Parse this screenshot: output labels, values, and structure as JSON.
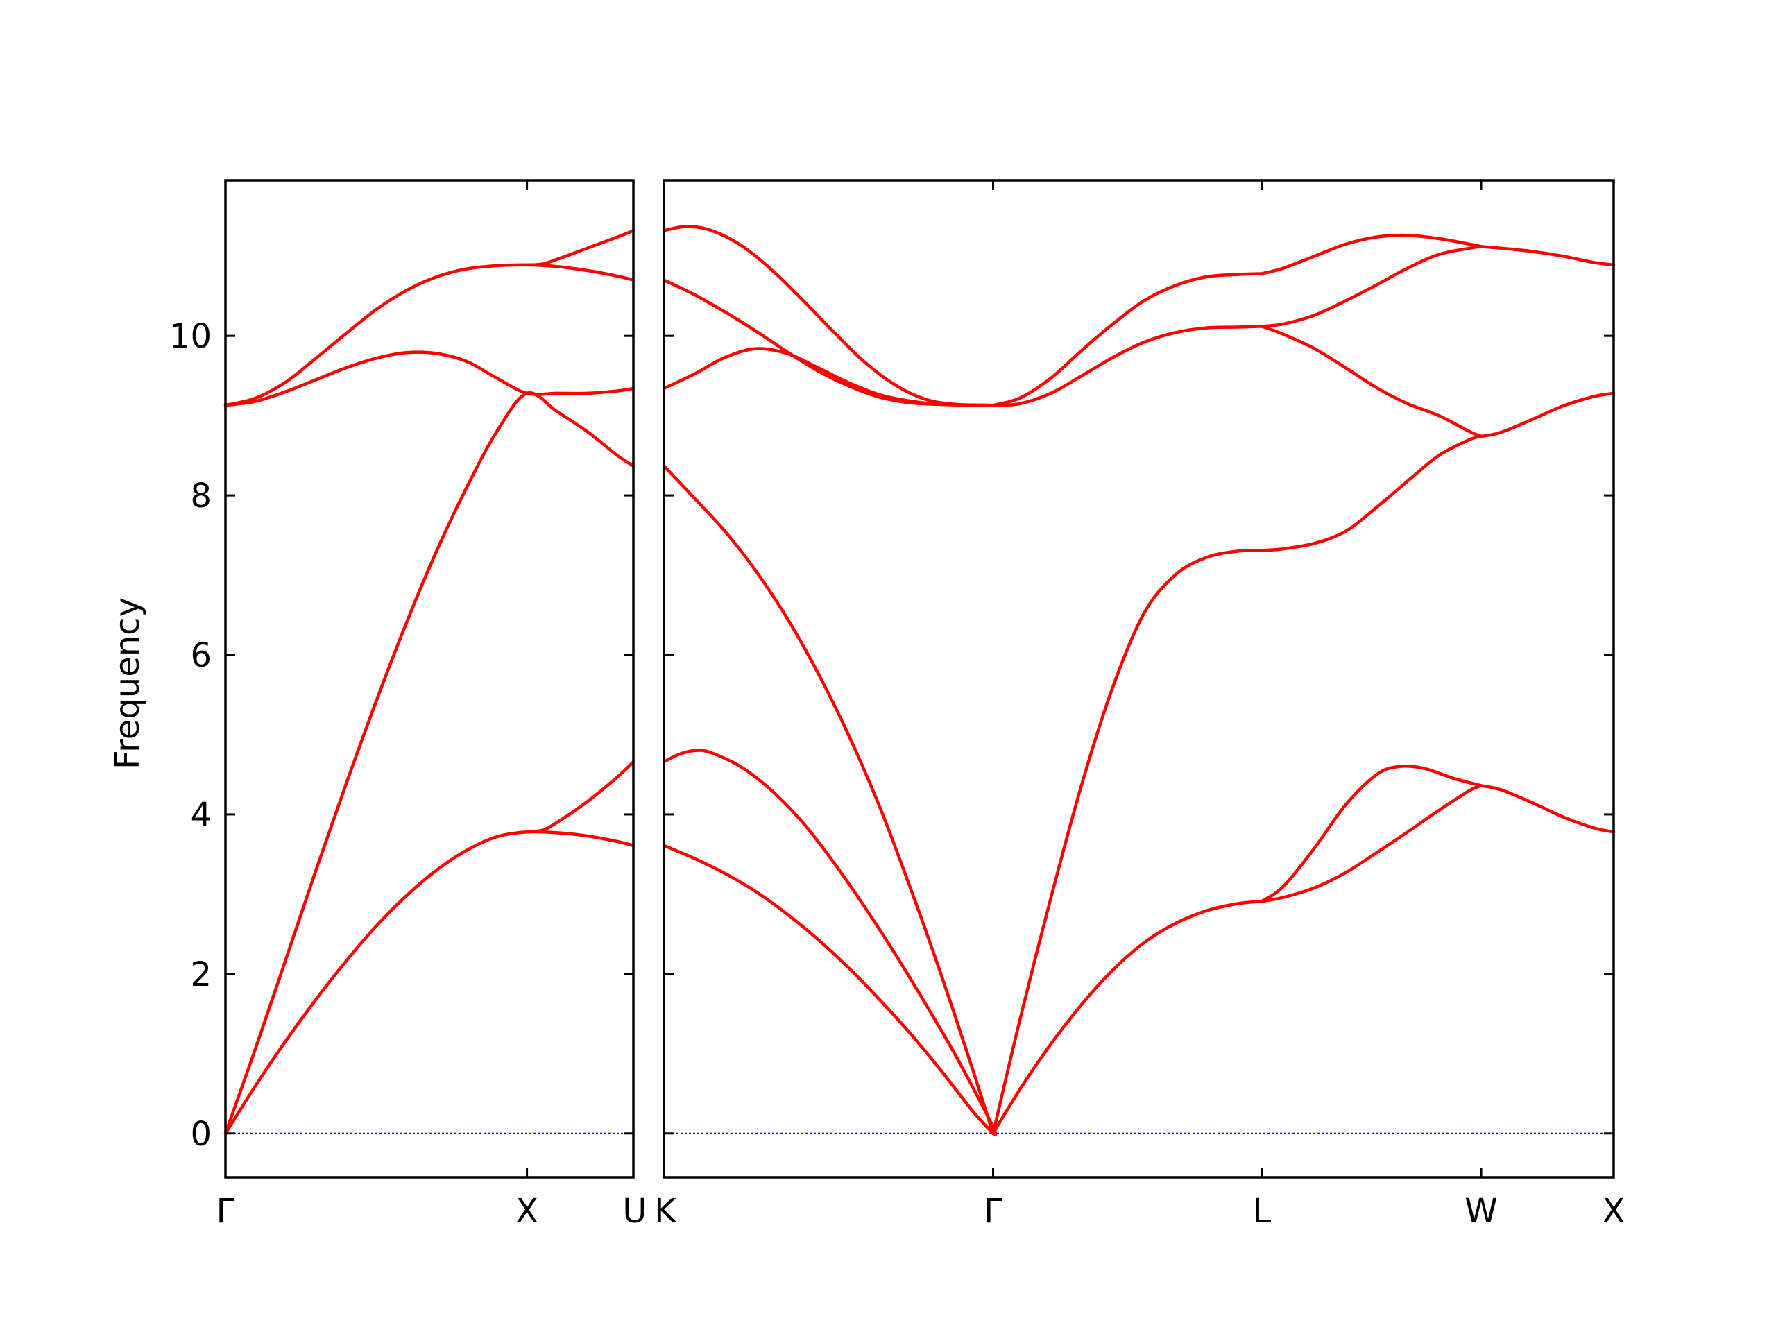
{
  "chart_data": {
    "type": "line",
    "ylabel": "Frequency",
    "ylim": [
      -0.55,
      11.95
    ],
    "yticks": [
      0,
      2,
      4,
      6,
      8,
      10
    ],
    "line_color": "#ff0000",
    "zero_line_color": "#0000cc",
    "grid": false,
    "panels": [
      {
        "x_range": [
          0,
          1.353
        ],
        "xticks": [
          {
            "pos": 0,
            "label": "Γ"
          },
          {
            "pos": 1.0,
            "label": "X"
          },
          {
            "pos": 1.353,
            "label": "U"
          }
        ],
        "bands": [
          [
            [
              0,
              0
            ],
            [
              0.1,
              0.6
            ],
            [
              0.2,
              1.16
            ],
            [
              0.3,
              1.68
            ],
            [
              0.4,
              2.16
            ],
            [
              0.5,
              2.6
            ],
            [
              0.6,
              2.98
            ],
            [
              0.7,
              3.3
            ],
            [
              0.8,
              3.55
            ],
            [
              0.9,
              3.72
            ],
            [
              1.0,
              3.78
            ],
            [
              1.1,
              3.77
            ],
            [
              1.2,
              3.73
            ],
            [
              1.3,
              3.66
            ],
            [
              1.353,
              3.61
            ]
          ],
          [
            [
              0,
              0
            ],
            [
              0.1,
              1.07
            ],
            [
              0.2,
              2.18
            ],
            [
              0.3,
              3.3
            ],
            [
              0.4,
              4.38
            ],
            [
              0.5,
              5.42
            ],
            [
              0.6,
              6.4
            ],
            [
              0.7,
              7.3
            ],
            [
              0.8,
              8.1
            ],
            [
              0.9,
              8.8
            ],
            [
              1.0,
              9.28
            ],
            [
              1.1,
              9.05
            ],
            [
              1.2,
              8.8
            ],
            [
              1.3,
              8.5
            ],
            [
              1.353,
              8.37
            ]
          ],
          [
            [
              0,
              9.13
            ],
            [
              0.1,
              9.18
            ],
            [
              0.2,
              9.3
            ],
            [
              0.3,
              9.45
            ],
            [
              0.4,
              9.6
            ],
            [
              0.5,
              9.72
            ],
            [
              0.6,
              9.79
            ],
            [
              0.7,
              9.78
            ],
            [
              0.8,
              9.68
            ],
            [
              0.9,
              9.47
            ],
            [
              1.0,
              9.28
            ],
            [
              1.1,
              9.28
            ],
            [
              1.2,
              9.28
            ],
            [
              1.3,
              9.31
            ],
            [
              1.353,
              9.34
            ]
          ],
          [
            [
              0,
              9.13
            ],
            [
              0.1,
              9.22
            ],
            [
              0.2,
              9.42
            ],
            [
              0.3,
              9.72
            ],
            [
              0.4,
              10.03
            ],
            [
              0.5,
              10.33
            ],
            [
              0.6,
              10.57
            ],
            [
              0.7,
              10.74
            ],
            [
              0.8,
              10.84
            ],
            [
              0.9,
              10.88
            ],
            [
              1.0,
              10.89
            ],
            [
              1.1,
              10.87
            ],
            [
              1.2,
              10.82
            ],
            [
              1.3,
              10.75
            ],
            [
              1.353,
              10.7
            ]
          ],
          [
            [
              1.0,
              3.78
            ],
            [
              1.05,
              3.8
            ],
            [
              1.1,
              3.9
            ],
            [
              1.2,
              4.16
            ],
            [
              1.3,
              4.47
            ],
            [
              1.353,
              4.66
            ]
          ],
          [
            [
              1.0,
              10.89
            ],
            [
              1.05,
              10.9
            ],
            [
              1.1,
              10.96
            ],
            [
              1.2,
              11.1
            ],
            [
              1.3,
              11.24
            ],
            [
              1.353,
              11.32
            ]
          ]
        ]
      },
      {
        "x_range": [
          1.353,
          4.414
        ],
        "xticks": [
          {
            "pos": 1.353,
            "label": "K"
          },
          {
            "pos": 2.414,
            "label": "Γ"
          },
          {
            "pos": 3.28,
            "label": "L"
          },
          {
            "pos": 3.987,
            "label": "W"
          },
          {
            "pos": 4.414,
            "label": "X"
          }
        ],
        "bands": [
          [
            [
              1.353,
              3.61
            ],
            [
              1.45,
              3.45
            ],
            [
              1.55,
              3.26
            ],
            [
              1.65,
              3.03
            ],
            [
              1.75,
              2.75
            ],
            [
              1.85,
              2.43
            ],
            [
              1.95,
              2.07
            ],
            [
              2.05,
              1.67
            ],
            [
              2.15,
              1.24
            ],
            [
              2.25,
              0.77
            ],
            [
              2.35,
              0.27
            ],
            [
              2.414,
              0
            ]
          ],
          [
            [
              1.353,
              4.66
            ],
            [
              1.4,
              4.75
            ],
            [
              1.45,
              4.8
            ],
            [
              1.5,
              4.78
            ],
            [
              1.6,
              4.6
            ],
            [
              1.7,
              4.3
            ],
            [
              1.8,
              3.9
            ],
            [
              1.9,
              3.4
            ],
            [
              2.0,
              2.84
            ],
            [
              2.1,
              2.24
            ],
            [
              2.2,
              1.6
            ],
            [
              2.3,
              0.93
            ],
            [
              2.414,
              0.08
            ],
            [
              2.414,
              0
            ]
          ],
          [
            [
              1.353,
              8.37
            ],
            [
              1.45,
              7.97
            ],
            [
              1.55,
              7.55
            ],
            [
              1.65,
              7.05
            ],
            [
              1.75,
              6.46
            ],
            [
              1.85,
              5.77
            ],
            [
              1.95,
              4.98
            ],
            [
              2.05,
              4.08
            ],
            [
              2.15,
              3.05
            ],
            [
              2.25,
              1.95
            ],
            [
              2.35,
              0.78
            ],
            [
              2.414,
              0
            ]
          ],
          [
            [
              1.353,
              9.34
            ],
            [
              1.45,
              9.52
            ],
            [
              1.55,
              9.73
            ],
            [
              1.65,
              9.84
            ],
            [
              1.75,
              9.78
            ],
            [
              1.85,
              9.6
            ],
            [
              1.95,
              9.41
            ],
            [
              2.05,
              9.26
            ],
            [
              2.15,
              9.18
            ],
            [
              2.25,
              9.14
            ],
            [
              2.414,
              9.13
            ]
          ],
          [
            [
              1.353,
              10.7
            ],
            [
              1.45,
              10.52
            ],
            [
              1.55,
              10.3
            ],
            [
              1.65,
              10.06
            ],
            [
              1.75,
              9.8
            ],
            [
              1.85,
              9.56
            ],
            [
              1.95,
              9.37
            ],
            [
              2.05,
              9.23
            ],
            [
              2.15,
              9.16
            ],
            [
              2.25,
              9.14
            ],
            [
              2.414,
              9.13
            ]
          ],
          [
            [
              1.353,
              11.32
            ],
            [
              1.42,
              11.37
            ],
            [
              1.5,
              11.33
            ],
            [
              1.6,
              11.14
            ],
            [
              1.7,
              10.83
            ],
            [
              1.8,
              10.45
            ],
            [
              1.9,
              10.05
            ],
            [
              2.0,
              9.67
            ],
            [
              2.1,
              9.38
            ],
            [
              2.2,
              9.2
            ],
            [
              2.3,
              9.14
            ],
            [
              2.414,
              9.13
            ]
          ],
          [
            [
              2.414,
              0
            ],
            [
              2.5,
              0.55
            ],
            [
              2.6,
              1.12
            ],
            [
              2.7,
              1.62
            ],
            [
              2.8,
              2.05
            ],
            [
              2.9,
              2.39
            ],
            [
              3.0,
              2.63
            ],
            [
              3.1,
              2.79
            ],
            [
              3.2,
              2.88
            ],
            [
              3.28,
              2.91
            ]
          ],
          [
            [
              2.414,
              0
            ],
            [
              2.5,
              1.42
            ],
            [
              2.6,
              2.95
            ],
            [
              2.7,
              4.38
            ],
            [
              2.8,
              5.6
            ],
            [
              2.9,
              6.52
            ],
            [
              3.0,
              7.0
            ],
            [
              3.1,
              7.22
            ],
            [
              3.2,
              7.3
            ],
            [
              3.28,
              7.31
            ]
          ],
          [
            [
              2.414,
              9.13
            ],
            [
              2.5,
              9.15
            ],
            [
              2.6,
              9.28
            ],
            [
              2.7,
              9.5
            ],
            [
              2.8,
              9.73
            ],
            [
              2.9,
              9.92
            ],
            [
              3.0,
              10.04
            ],
            [
              3.1,
              10.1
            ],
            [
              3.2,
              10.11
            ],
            [
              3.28,
              10.12
            ]
          ],
          [
            [
              2.414,
              9.13
            ],
            [
              2.5,
              9.22
            ],
            [
              2.6,
              9.47
            ],
            [
              2.7,
              9.82
            ],
            [
              2.8,
              10.15
            ],
            [
              2.9,
              10.44
            ],
            [
              3.0,
              10.63
            ],
            [
              3.1,
              10.74
            ],
            [
              3.2,
              10.77
            ],
            [
              3.28,
              10.78
            ]
          ],
          [
            [
              3.28,
              2.91
            ],
            [
              3.35,
              2.96
            ],
            [
              3.45,
              3.08
            ],
            [
              3.55,
              3.27
            ],
            [
              3.65,
              3.52
            ],
            [
              3.75,
              3.78
            ],
            [
              3.85,
              4.05
            ],
            [
              3.95,
              4.3
            ],
            [
              3.987,
              4.36
            ]
          ],
          [
            [
              3.28,
              2.91
            ],
            [
              3.35,
              3.1
            ],
            [
              3.45,
              3.58
            ],
            [
              3.55,
              4.12
            ],
            [
              3.65,
              4.5
            ],
            [
              3.72,
              4.6
            ],
            [
              3.8,
              4.58
            ],
            [
              3.9,
              4.45
            ],
            [
              3.987,
              4.36
            ]
          ],
          [
            [
              3.28,
              7.31
            ],
            [
              3.35,
              7.33
            ],
            [
              3.45,
              7.4
            ],
            [
              3.55,
              7.55
            ],
            [
              3.65,
              7.85
            ],
            [
              3.75,
              8.18
            ],
            [
              3.85,
              8.5
            ],
            [
              3.95,
              8.7
            ],
            [
              3.987,
              8.74
            ]
          ],
          [
            [
              3.28,
              10.12
            ],
            [
              3.35,
              10.02
            ],
            [
              3.45,
              9.84
            ],
            [
              3.55,
              9.6
            ],
            [
              3.65,
              9.35
            ],
            [
              3.75,
              9.15
            ],
            [
              3.85,
              9.0
            ],
            [
              3.95,
              8.8
            ],
            [
              3.987,
              8.74
            ]
          ],
          [
            [
              3.28,
              10.12
            ],
            [
              3.35,
              10.15
            ],
            [
              3.45,
              10.26
            ],
            [
              3.55,
              10.44
            ],
            [
              3.65,
              10.64
            ],
            [
              3.75,
              10.85
            ],
            [
              3.85,
              11.02
            ],
            [
              3.95,
              11.1
            ],
            [
              3.987,
              11.12
            ]
          ],
          [
            [
              3.28,
              10.78
            ],
            [
              3.35,
              10.85
            ],
            [
              3.45,
              11.0
            ],
            [
              3.55,
              11.15
            ],
            [
              3.65,
              11.24
            ],
            [
              3.75,
              11.26
            ],
            [
              3.85,
              11.22
            ],
            [
              3.95,
              11.15
            ],
            [
              3.987,
              11.12
            ]
          ],
          [
            [
              3.987,
              4.36
            ],
            [
              4.05,
              4.31
            ],
            [
              4.15,
              4.15
            ],
            [
              4.25,
              3.97
            ],
            [
              4.35,
              3.83
            ],
            [
              4.414,
              3.78
            ]
          ],
          [
            [
              3.987,
              8.74
            ],
            [
              4.05,
              8.79
            ],
            [
              4.15,
              8.95
            ],
            [
              4.25,
              9.12
            ],
            [
              4.35,
              9.24
            ],
            [
              4.414,
              9.28
            ]
          ],
          [
            [
              3.987,
              11.12
            ],
            [
              4.05,
              11.1
            ],
            [
              4.15,
              11.06
            ],
            [
              4.25,
              11.0
            ],
            [
              4.35,
              10.92
            ],
            [
              4.414,
              10.89
            ]
          ]
        ]
      }
    ]
  }
}
